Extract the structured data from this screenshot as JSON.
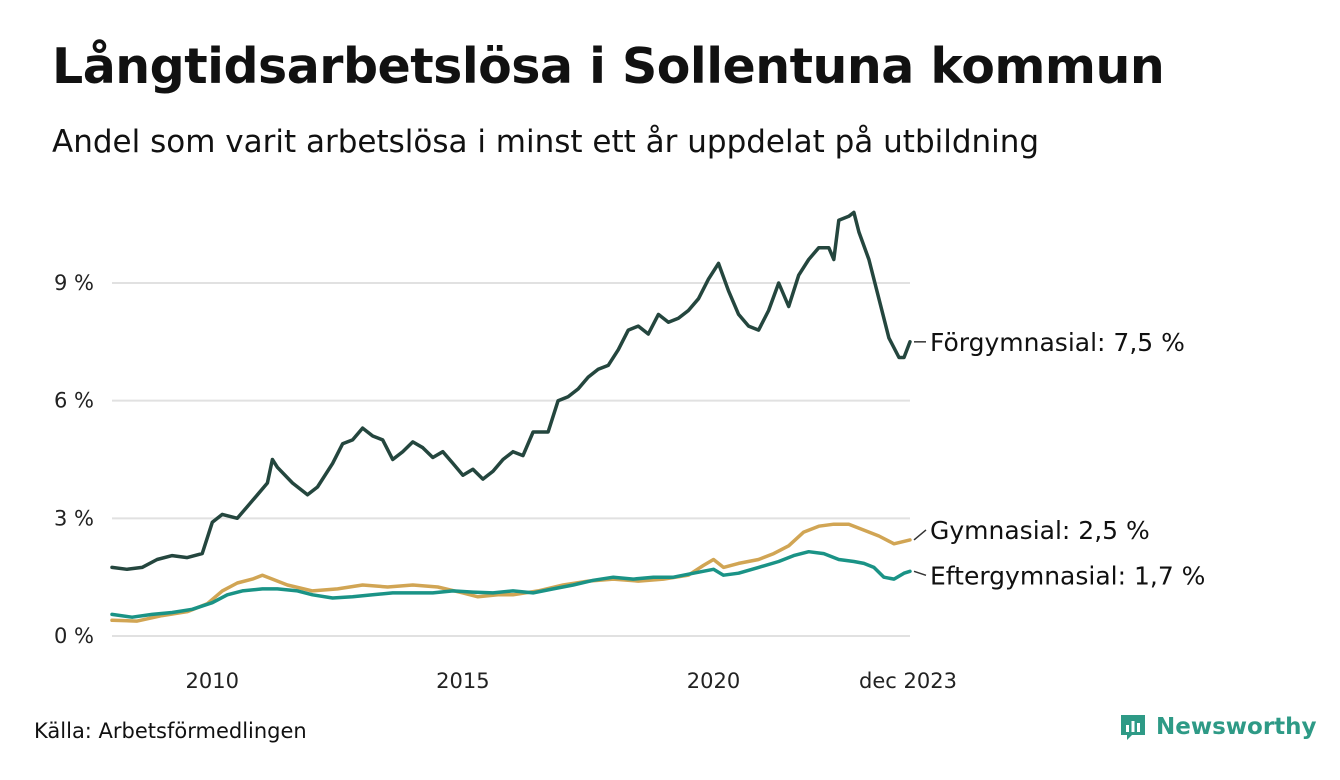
{
  "title": "Långtidsarbetslösa i Sollentuna kommun",
  "subtitle": "Andel som varit arbetslösa i minst ett år uppdelat på utbildning",
  "source": "Källa: Arbetsförmedlingen",
  "brand": {
    "name": "Newsworthy",
    "color": "#2e9a86"
  },
  "chart_data": {
    "type": "line",
    "y_ticks": [
      {
        "value": 0,
        "label": "0 %"
      },
      {
        "value": 3,
        "label": "3 %"
      },
      {
        "value": 6,
        "label": "6 %"
      },
      {
        "value": 9,
        "label": "9 %"
      }
    ],
    "x_ticks": [
      {
        "value": 2010,
        "label": "2010"
      },
      {
        "value": 2015,
        "label": "2015"
      },
      {
        "value": 2020,
        "label": "2020"
      },
      {
        "value": 2023.92,
        "label": "dec 2023"
      }
    ],
    "xlim": [
      2008.0,
      2023.92
    ],
    "ylim": [
      0,
      11
    ],
    "gridlines": true,
    "series": [
      {
        "name": "Förgymnasial",
        "label": "Förgymnasial: 7,5 %",
        "color": "#24463e",
        "points": [
          [
            2008.0,
            1.75
          ],
          [
            2008.3,
            1.7
          ],
          [
            2008.6,
            1.75
          ],
          [
            2008.9,
            1.95
          ],
          [
            2009.2,
            2.05
          ],
          [
            2009.5,
            2.0
          ],
          [
            2009.8,
            2.1
          ],
          [
            2010.0,
            2.9
          ],
          [
            2010.2,
            3.1
          ],
          [
            2010.5,
            3.0
          ],
          [
            2010.7,
            3.3
          ],
          [
            2010.9,
            3.6
          ],
          [
            2011.1,
            3.9
          ],
          [
            2011.2,
            4.5
          ],
          [
            2011.3,
            4.3
          ],
          [
            2011.6,
            3.9
          ],
          [
            2011.9,
            3.6
          ],
          [
            2012.1,
            3.8
          ],
          [
            2012.4,
            4.4
          ],
          [
            2012.6,
            4.9
          ],
          [
            2012.8,
            5.0
          ],
          [
            2013.0,
            5.3
          ],
          [
            2013.2,
            5.1
          ],
          [
            2013.4,
            5.0
          ],
          [
            2013.6,
            4.5
          ],
          [
            2013.8,
            4.7
          ],
          [
            2014.0,
            4.95
          ],
          [
            2014.2,
            4.8
          ],
          [
            2014.4,
            4.55
          ],
          [
            2014.6,
            4.7
          ],
          [
            2014.8,
            4.4
          ],
          [
            2015.0,
            4.1
          ],
          [
            2015.2,
            4.25
          ],
          [
            2015.4,
            4.0
          ],
          [
            2015.6,
            4.2
          ],
          [
            2015.8,
            4.5
          ],
          [
            2016.0,
            4.7
          ],
          [
            2016.2,
            4.6
          ],
          [
            2016.4,
            5.2
          ],
          [
            2016.7,
            5.2
          ],
          [
            2016.9,
            6.0
          ],
          [
            2017.1,
            6.1
          ],
          [
            2017.3,
            6.3
          ],
          [
            2017.5,
            6.6
          ],
          [
            2017.7,
            6.8
          ],
          [
            2017.9,
            6.9
          ],
          [
            2018.1,
            7.3
          ],
          [
            2018.3,
            7.8
          ],
          [
            2018.5,
            7.9
          ],
          [
            2018.7,
            7.7
          ],
          [
            2018.9,
            8.2
          ],
          [
            2019.1,
            8.0
          ],
          [
            2019.3,
            8.1
          ],
          [
            2019.5,
            8.3
          ],
          [
            2019.7,
            8.6
          ],
          [
            2019.9,
            9.1
          ],
          [
            2020.1,
            9.5
          ],
          [
            2020.3,
            8.8
          ],
          [
            2020.5,
            8.2
          ],
          [
            2020.7,
            7.9
          ],
          [
            2020.9,
            7.8
          ],
          [
            2021.1,
            8.3
          ],
          [
            2021.3,
            9.0
          ],
          [
            2021.5,
            8.4
          ],
          [
            2021.7,
            9.2
          ],
          [
            2021.9,
            9.6
          ],
          [
            2022.1,
            9.9
          ],
          [
            2022.3,
            9.9
          ],
          [
            2022.4,
            9.6
          ],
          [
            2022.5,
            10.6
          ],
          [
            2022.7,
            10.7
          ],
          [
            2022.8,
            10.8
          ],
          [
            2022.9,
            10.3
          ],
          [
            2023.1,
            9.6
          ],
          [
            2023.3,
            8.6
          ],
          [
            2023.5,
            7.6
          ],
          [
            2023.7,
            7.1
          ],
          [
            2023.8,
            7.1
          ],
          [
            2023.92,
            7.5
          ]
        ]
      },
      {
        "name": "Gymnasial",
        "label": "Gymnasial: 2,5 %",
        "color": "#d1a554",
        "points": [
          [
            2008.0,
            0.4
          ],
          [
            2008.5,
            0.38
          ],
          [
            2009.0,
            0.52
          ],
          [
            2009.5,
            0.62
          ],
          [
            2009.9,
            0.82
          ],
          [
            2010.2,
            1.15
          ],
          [
            2010.5,
            1.35
          ],
          [
            2010.8,
            1.45
          ],
          [
            2011.0,
            1.55
          ],
          [
            2011.2,
            1.45
          ],
          [
            2011.5,
            1.3
          ],
          [
            2012.0,
            1.15
          ],
          [
            2012.5,
            1.2
          ],
          [
            2013.0,
            1.3
          ],
          [
            2013.5,
            1.25
          ],
          [
            2014.0,
            1.3
          ],
          [
            2014.5,
            1.25
          ],
          [
            2015.0,
            1.1
          ],
          [
            2015.3,
            1.0
          ],
          [
            2015.7,
            1.05
          ],
          [
            2016.0,
            1.05
          ],
          [
            2016.5,
            1.15
          ],
          [
            2017.0,
            1.3
          ],
          [
            2017.5,
            1.4
          ],
          [
            2018.0,
            1.45
          ],
          [
            2018.5,
            1.4
          ],
          [
            2019.0,
            1.45
          ],
          [
            2019.5,
            1.55
          ],
          [
            2019.8,
            1.8
          ],
          [
            2020.0,
            1.95
          ],
          [
            2020.2,
            1.75
          ],
          [
            2020.5,
            1.85
          ],
          [
            2020.9,
            1.95
          ],
          [
            2021.2,
            2.1
          ],
          [
            2021.5,
            2.3
          ],
          [
            2021.8,
            2.65
          ],
          [
            2022.1,
            2.8
          ],
          [
            2022.4,
            2.85
          ],
          [
            2022.7,
            2.85
          ],
          [
            2023.0,
            2.7
          ],
          [
            2023.3,
            2.55
          ],
          [
            2023.6,
            2.35
          ],
          [
            2023.92,
            2.45
          ]
        ]
      },
      {
        "name": "Eftergymnasial",
        "label": "Eftergymnasial: 1,7 %",
        "color": "#1a9386",
        "points": [
          [
            2008.0,
            0.55
          ],
          [
            2008.4,
            0.48
          ],
          [
            2008.8,
            0.55
          ],
          [
            2009.2,
            0.6
          ],
          [
            2009.6,
            0.68
          ],
          [
            2010.0,
            0.85
          ],
          [
            2010.3,
            1.05
          ],
          [
            2010.6,
            1.15
          ],
          [
            2011.0,
            1.2
          ],
          [
            2011.3,
            1.2
          ],
          [
            2011.7,
            1.15
          ],
          [
            2012.0,
            1.05
          ],
          [
            2012.4,
            0.97
          ],
          [
            2012.8,
            1.0
          ],
          [
            2013.2,
            1.05
          ],
          [
            2013.6,
            1.1
          ],
          [
            2014.0,
            1.1
          ],
          [
            2014.4,
            1.1
          ],
          [
            2014.8,
            1.15
          ],
          [
            2015.2,
            1.12
          ],
          [
            2015.6,
            1.1
          ],
          [
            2016.0,
            1.15
          ],
          [
            2016.4,
            1.1
          ],
          [
            2016.8,
            1.2
          ],
          [
            2017.2,
            1.3
          ],
          [
            2017.6,
            1.42
          ],
          [
            2018.0,
            1.5
          ],
          [
            2018.4,
            1.45
          ],
          [
            2018.8,
            1.5
          ],
          [
            2019.2,
            1.5
          ],
          [
            2019.6,
            1.6
          ],
          [
            2020.0,
            1.7
          ],
          [
            2020.2,
            1.55
          ],
          [
            2020.5,
            1.6
          ],
          [
            2020.9,
            1.75
          ],
          [
            2021.3,
            1.9
          ],
          [
            2021.6,
            2.05
          ],
          [
            2021.9,
            2.15
          ],
          [
            2022.2,
            2.1
          ],
          [
            2022.5,
            1.95
          ],
          [
            2022.8,
            1.9
          ],
          [
            2023.0,
            1.85
          ],
          [
            2023.2,
            1.75
          ],
          [
            2023.4,
            1.5
          ],
          [
            2023.6,
            1.45
          ],
          [
            2023.8,
            1.6
          ],
          [
            2023.92,
            1.65
          ]
        ]
      }
    ]
  }
}
